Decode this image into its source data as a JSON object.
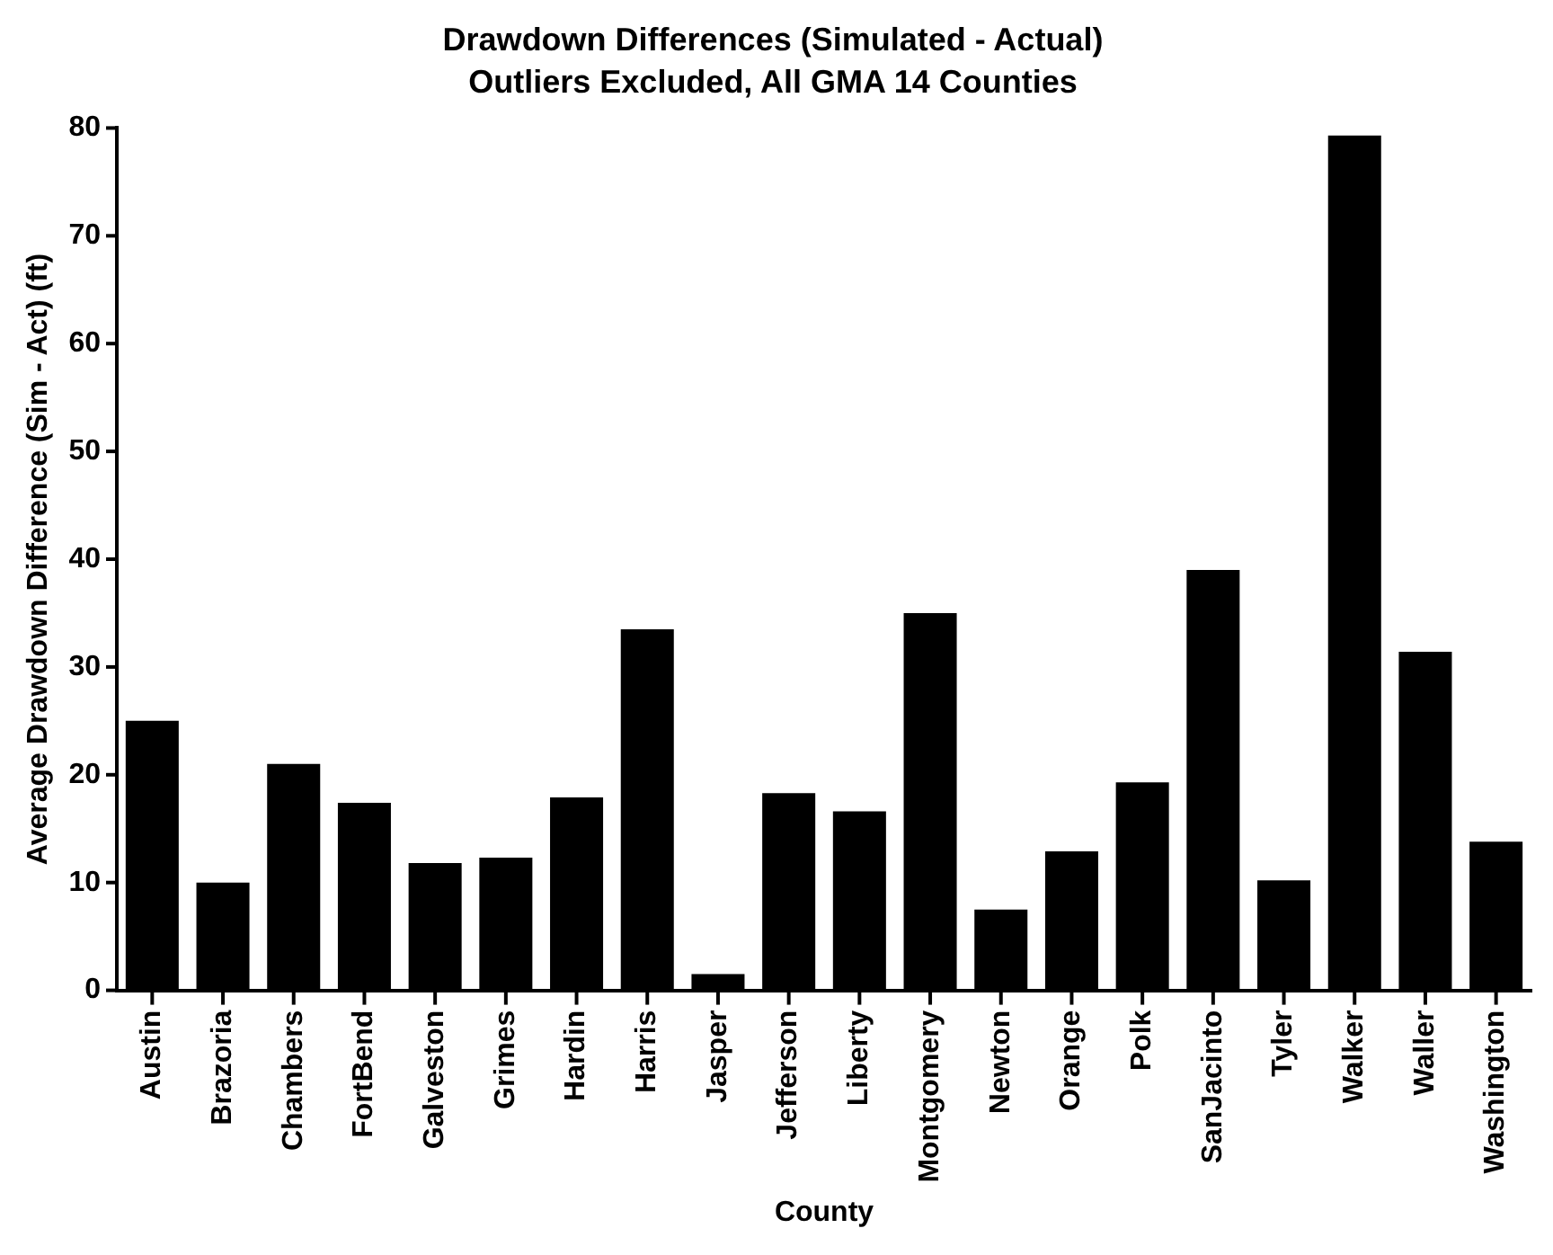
{
  "chart_data": {
    "type": "bar",
    "title": "Drawdown Differences (Simulated - Actual)",
    "subtitle": "Outliers Excluded, All GMA 14 Counties",
    "xlabel": "County",
    "ylabel": "Average Drawdown Difference (Sim - Act) (ft)",
    "categories": [
      "Austin",
      "Brazoria",
      "Chambers",
      "FortBend",
      "Galveston",
      "Grimes",
      "Hardin",
      "Harris",
      "Jasper",
      "Jefferson",
      "Liberty",
      "Montgomery",
      "Newton",
      "Orange",
      "Polk",
      "SanJacinto",
      "Tyler",
      "Walker",
      "Waller",
      "Washington"
    ],
    "values": [
      25.0,
      10.0,
      21.0,
      17.4,
      11.8,
      12.3,
      17.9,
      33.5,
      1.5,
      18.3,
      16.6,
      35.0,
      7.5,
      12.9,
      19.3,
      39.0,
      10.2,
      79.3,
      31.4,
      13.8
    ],
    "color": "#000000",
    "ylim": [
      0,
      80
    ],
    "yticks": [
      0,
      10,
      20,
      30,
      40,
      50,
      60,
      70,
      80
    ],
    "grid": false,
    "legend": false
  }
}
